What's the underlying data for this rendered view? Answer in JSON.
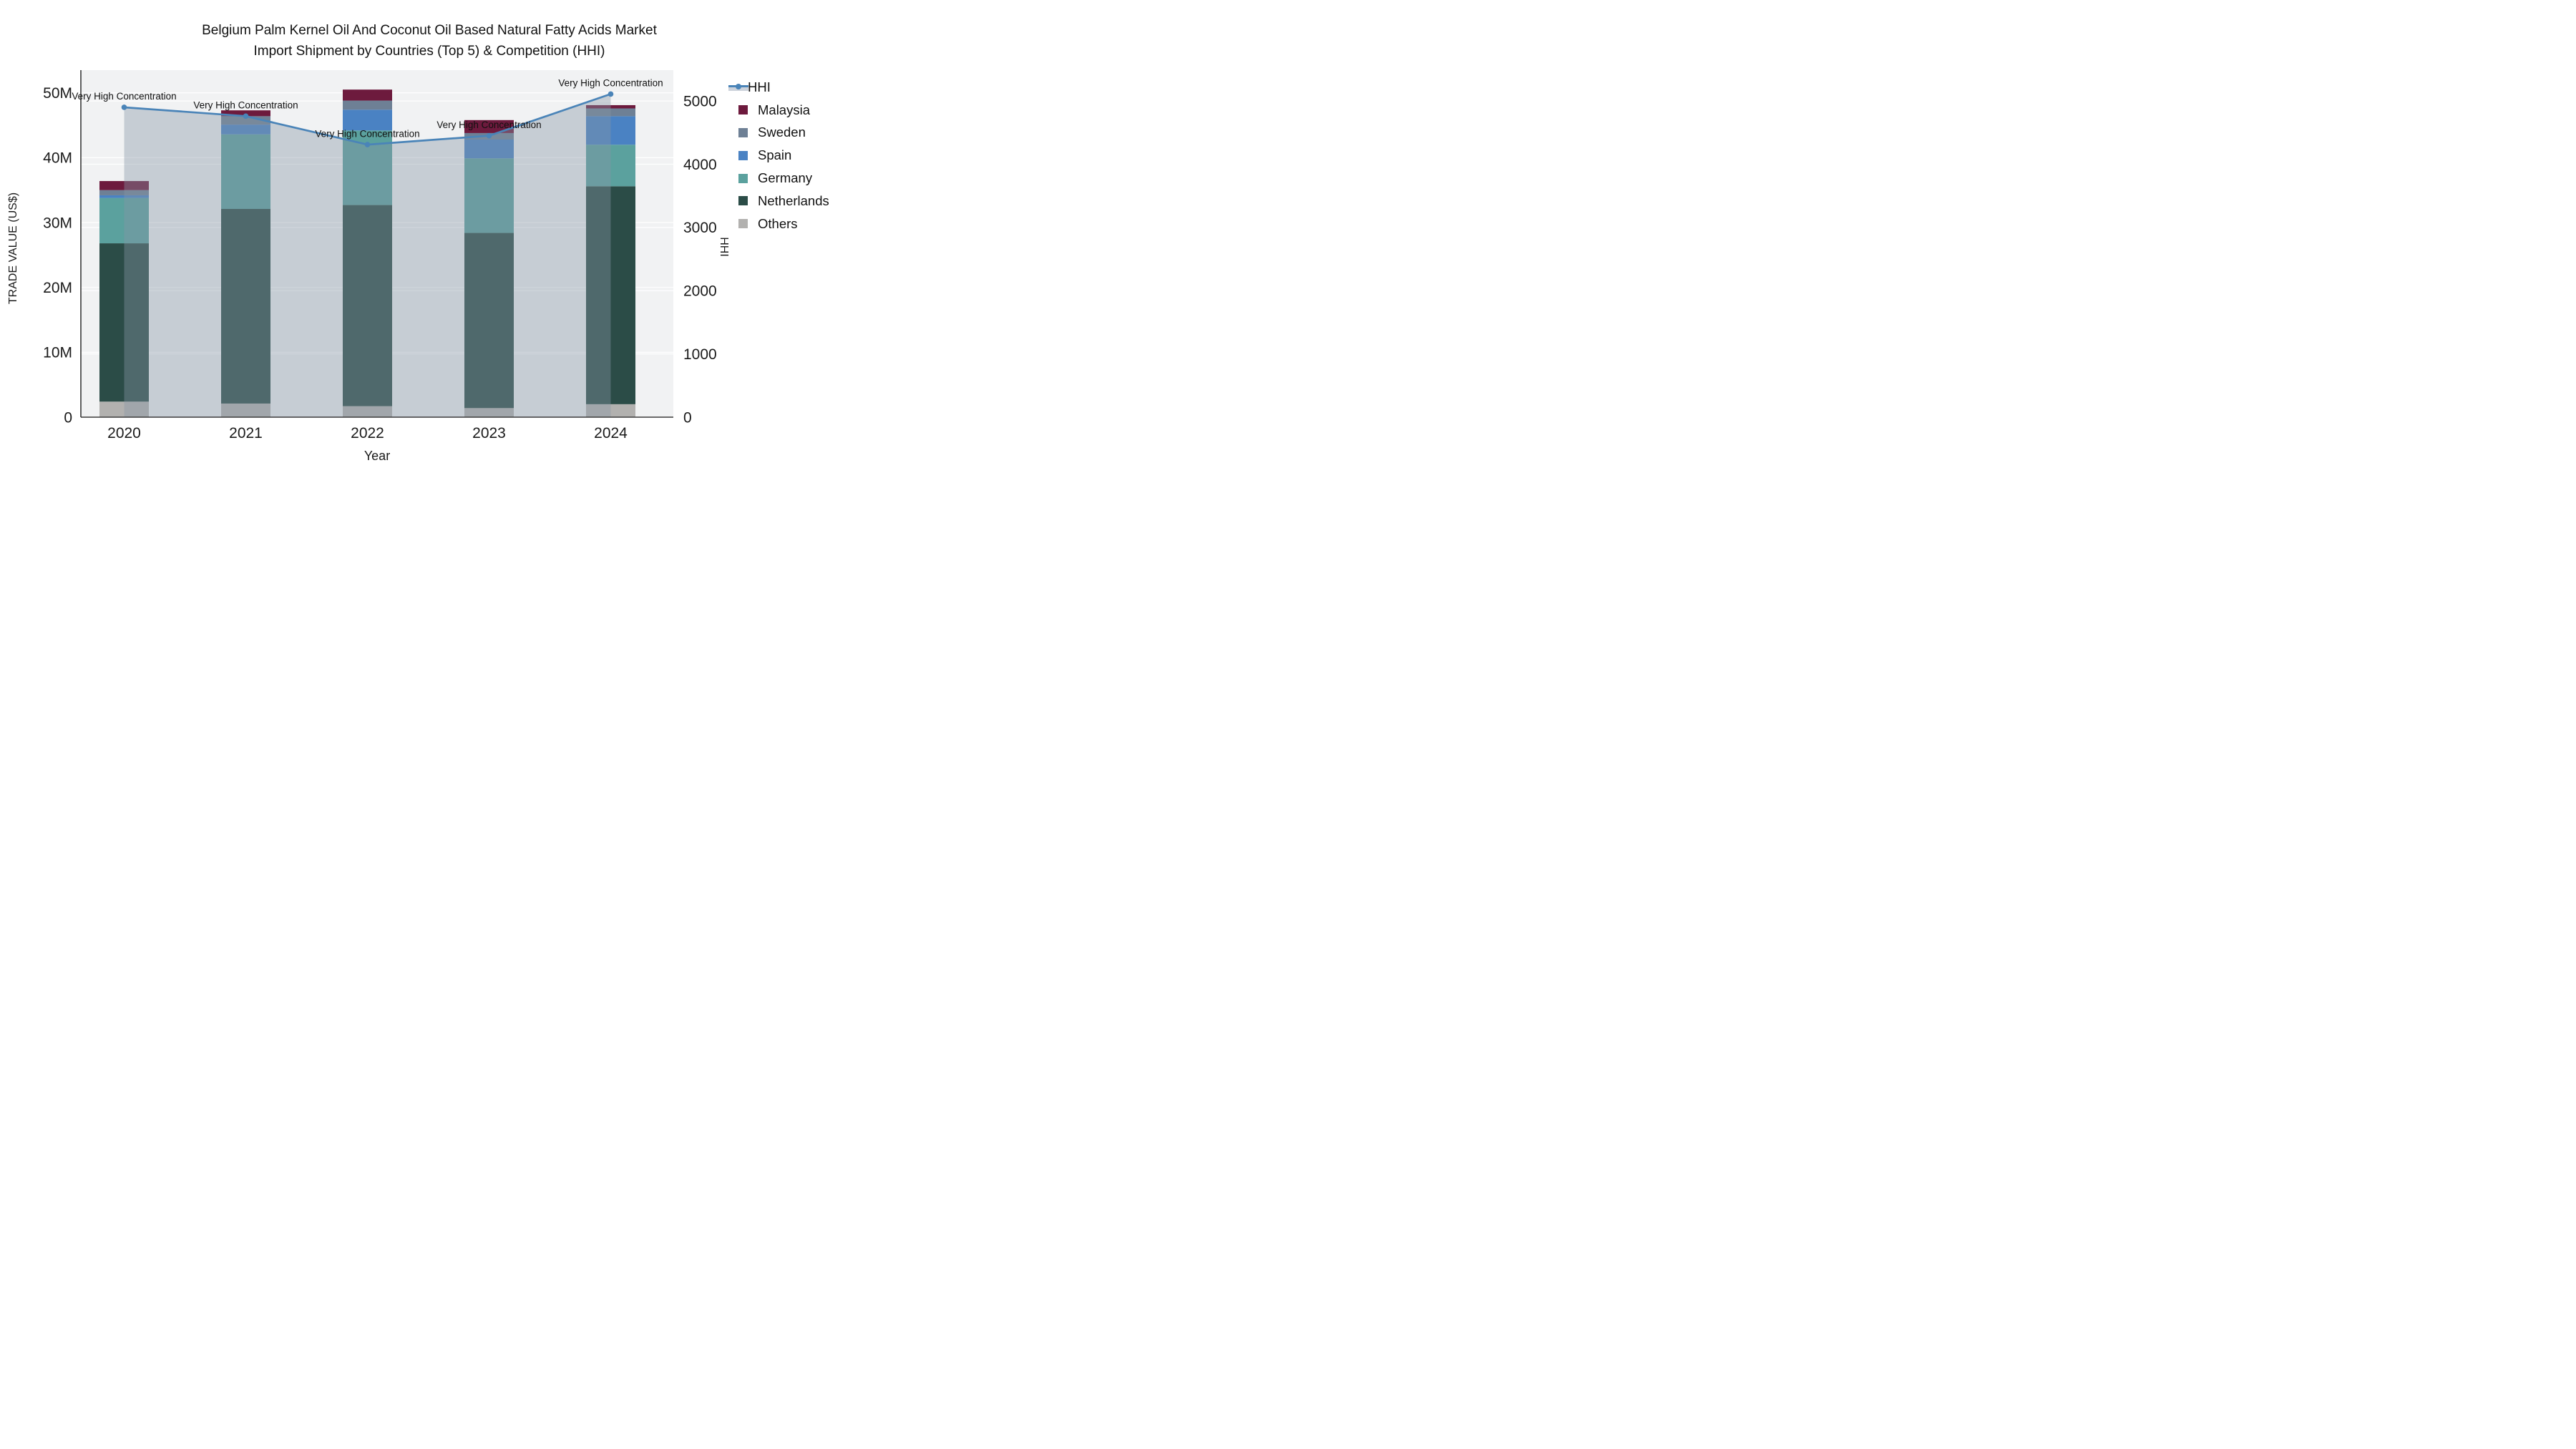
{
  "title": {
    "line1": "Belgium Palm Kernel Oil And Coconut Oil Based Natural Fatty Acids Market",
    "line2": "Import Shipment by Countries (Top 5) & Competition (HHI)"
  },
  "axes": {
    "y_left": {
      "title": "TRADE VALUE (US$)",
      "max": 53.5,
      "ticks": [
        {
          "v": 0,
          "label": "0"
        },
        {
          "v": 10,
          "label": "10M"
        },
        {
          "v": 20,
          "label": "20M"
        },
        {
          "v": 30,
          "label": "30M"
        },
        {
          "v": 40,
          "label": "40M"
        },
        {
          "v": 50,
          "label": "50M"
        }
      ]
    },
    "y_right": {
      "title": "HHI",
      "max": 5488,
      "ticks": [
        {
          "v": 0,
          "label": "0"
        },
        {
          "v": 1000,
          "label": "1000"
        },
        {
          "v": 2000,
          "label": "2000"
        },
        {
          "v": 3000,
          "label": "3000"
        },
        {
          "v": 4000,
          "label": "4000"
        },
        {
          "v": 5000,
          "label": "5000"
        }
      ]
    },
    "x": {
      "title": "Year",
      "categories": [
        "2020",
        "2021",
        "2022",
        "2023",
        "2024"
      ]
    }
  },
  "legend": [
    {
      "id": "hhi",
      "label": "HHI",
      "type": "line",
      "color": "#4a84b8"
    },
    {
      "id": "malaysia",
      "label": "Malaysia",
      "type": "box",
      "color": "#6d1a3d"
    },
    {
      "id": "sweden",
      "label": "Sweden",
      "type": "box",
      "color": "#6e8095"
    },
    {
      "id": "spain",
      "label": "Spain",
      "type": "box",
      "color": "#4a82c3"
    },
    {
      "id": "germany",
      "label": "Germany",
      "type": "box",
      "color": "#5ba19e"
    },
    {
      "id": "netherlands",
      "label": "Netherlands",
      "type": "box",
      "color": "#2b4c47"
    },
    {
      "id": "others",
      "label": "Others",
      "type": "box",
      "color": "#b2b1af"
    }
  ],
  "colors": {
    "plot_bg": "#f1f2f3",
    "gridline": "rgba(255,255,255,0.95)",
    "spine": "#3a3a3a",
    "hhi_line": "#4a84b8",
    "hhi_fill": "rgba(136,150,166,0.40)",
    "annotation_text": "#111111",
    "tick_text": "#1a1a1a"
  },
  "chart_data": {
    "type": "combo_stacked_bar_line",
    "unit": "M US$",
    "categories": [
      "2020",
      "2021",
      "2022",
      "2023",
      "2024"
    ],
    "series": [
      {
        "name": "Others",
        "color": "#b2b1af",
        "values": [
          2.4,
          2.1,
          1.7,
          1.4,
          2.0
        ]
      },
      {
        "name": "Netherlands",
        "color": "#2b4c47",
        "values": [
          24.4,
          30.0,
          31.0,
          27.0,
          33.6
        ]
      },
      {
        "name": "Germany",
        "color": "#5ba19e",
        "values": [
          7.0,
          11.5,
          11.5,
          11.5,
          6.4
        ]
      },
      {
        "name": "Spain",
        "color": "#4a82c3",
        "values": [
          0.4,
          1.5,
          3.2,
          2.9,
          4.4
        ]
      },
      {
        "name": "Sweden",
        "color": "#6e8095",
        "values": [
          0.8,
          1.3,
          1.4,
          1.0,
          1.2
        ]
      },
      {
        "name": "Malaysia",
        "color": "#6d1a3d",
        "values": [
          1.4,
          0.9,
          1.7,
          2.0,
          0.5
        ]
      }
    ],
    "totals": [
      36.4,
      47.3,
      50.5,
      45.8,
      48.1
    ],
    "hhi": {
      "name": "HHI",
      "values": [
        4900,
        4760,
        4310,
        4450,
        5110
      ],
      "annotations": [
        "Very High Concentration",
        "Very High Concentration",
        "Very High Concentration",
        "Very High Concentration",
        "Very High Concentration"
      ]
    },
    "ylim_left": [
      0,
      53.5
    ],
    "ylim_right": [
      0,
      5488
    ],
    "legend_position": "right",
    "grid": true
  }
}
